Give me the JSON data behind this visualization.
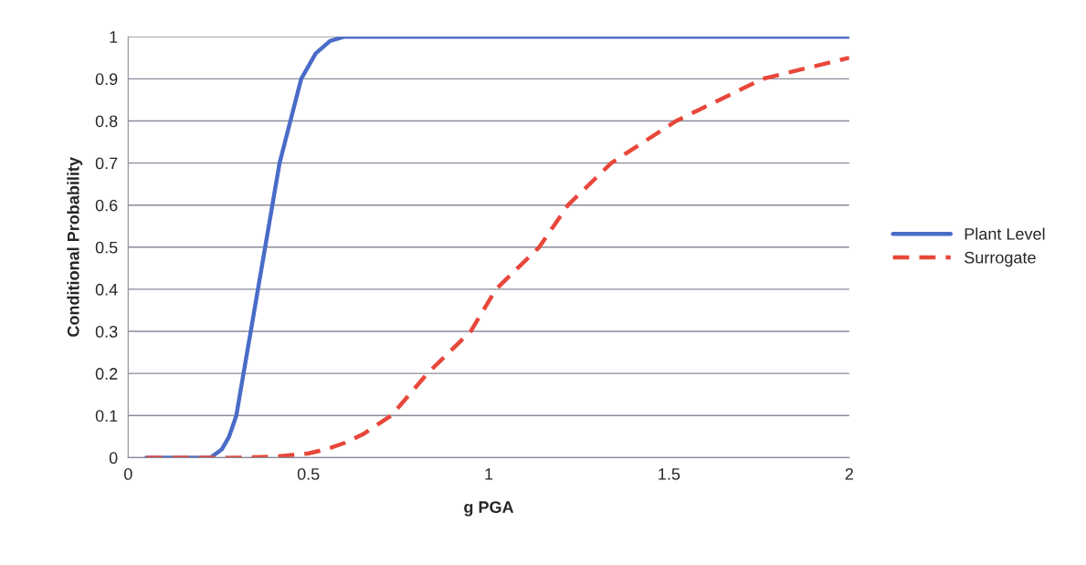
{
  "chart_data": {
    "type": "line",
    "xlabel": "g PGA",
    "ylabel": "Conditional Probability",
    "xlim": [
      0,
      2
    ],
    "xticks": [
      0,
      0.5,
      1,
      1.5,
      2
    ],
    "ylim": [
      0,
      1
    ],
    "yticks": [
      0,
      0.1,
      0.2,
      0.3,
      0.4,
      0.5,
      0.6,
      0.7,
      0.8,
      0.9,
      1
    ],
    "grid": "y",
    "legend": "right",
    "series": [
      {
        "name": "Plant Level",
        "color": "#4a6cc8",
        "line_style": "solid",
        "x": [
          0.05,
          0.2,
          0.23,
          0.26,
          0.28,
          0.3,
          0.32,
          0.34,
          0.36,
          0.38,
          0.4,
          0.42,
          0.45,
          0.48,
          0.52,
          0.56,
          0.6,
          2.0
        ],
        "values": [
          0,
          0,
          0.001,
          0.02,
          0.05,
          0.1,
          0.2,
          0.3,
          0.4,
          0.5,
          0.6,
          0.7,
          0.8,
          0.9,
          0.96,
          0.99,
          1.0,
          1.0
        ]
      },
      {
        "name": "Surrogate",
        "color": "#e8473a",
        "line_style": "dashed",
        "x": [
          0.05,
          0.3,
          0.4,
          0.5,
          0.55,
          0.6,
          0.65,
          0.73,
          0.83,
          0.95,
          1.02,
          1.14,
          1.22,
          1.34,
          1.52,
          1.76,
          2.0
        ],
        "values": [
          0,
          0,
          0.002,
          0.01,
          0.02,
          0.035,
          0.055,
          0.1,
          0.2,
          0.3,
          0.4,
          0.5,
          0.6,
          0.7,
          0.8,
          0.9,
          0.95
        ]
      }
    ]
  }
}
